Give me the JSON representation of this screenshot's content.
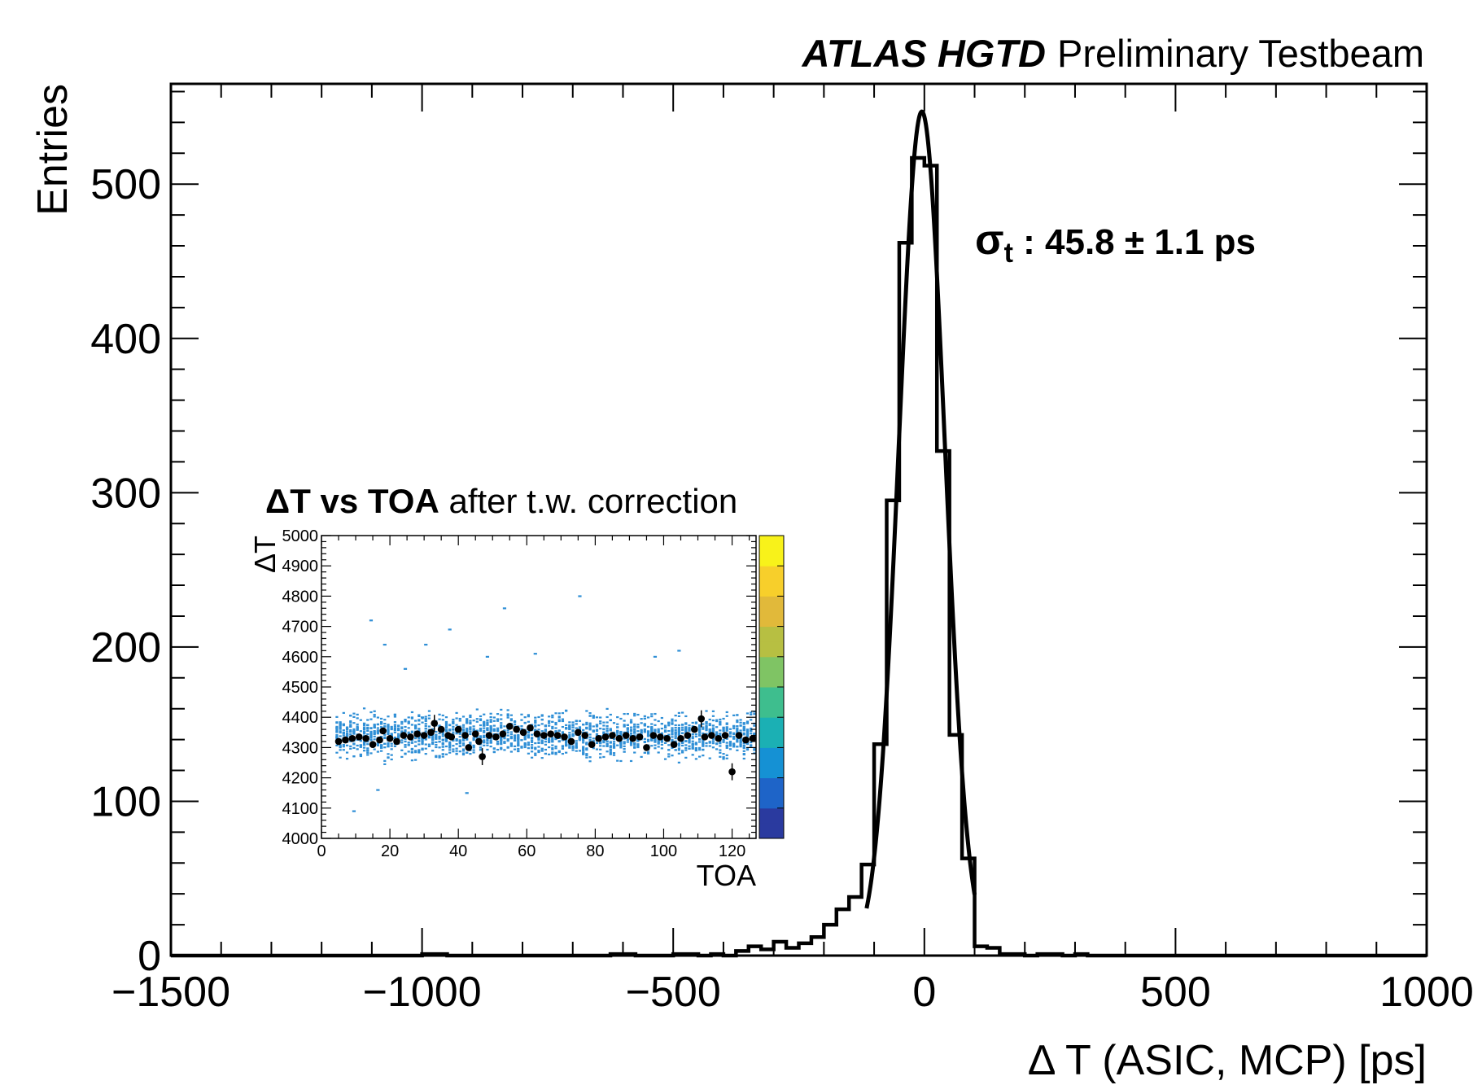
{
  "chart_data": [
    {
      "type": "histogram",
      "experiment_label": "ATLAS HGTD",
      "status_label": "Preliminary Testbeam",
      "xlabel": "Δ T (ASIC, MCP) [ps]",
      "ylabel": "Entries",
      "xlim": [
        -1500,
        1000
      ],
      "ylim": [
        0,
        565
      ],
      "x_ticks": [
        -1500,
        -1000,
        -500,
        0,
        500,
        1000
      ],
      "x_tick_labels": [
        "−1500",
        "−1000",
        "−500",
        "0",
        "500",
        "1000"
      ],
      "y_ticks": [
        0,
        100,
        200,
        300,
        400,
        500
      ],
      "y_tick_labels": [
        "0",
        "100",
        "200",
        "300",
        "400",
        "500"
      ],
      "bin_width": 25,
      "bins": [
        {
          "x": -1000,
          "y": 1
        },
        {
          "x": -975,
          "y": 1
        },
        {
          "x": -625,
          "y": 1
        },
        {
          "x": -600,
          "y": 1
        },
        {
          "x": -500,
          "y": 1
        },
        {
          "x": -475,
          "y": 1
        },
        {
          "x": -425,
          "y": 1
        },
        {
          "x": -375,
          "y": 3
        },
        {
          "x": -350,
          "y": 6
        },
        {
          "x": -325,
          "y": 4
        },
        {
          "x": -300,
          "y": 9
        },
        {
          "x": -275,
          "y": 5
        },
        {
          "x": -250,
          "y": 8
        },
        {
          "x": -225,
          "y": 12
        },
        {
          "x": -200,
          "y": 20
        },
        {
          "x": -175,
          "y": 30
        },
        {
          "x": -150,
          "y": 38
        },
        {
          "x": -125,
          "y": 59
        },
        {
          "x": -100,
          "y": 137
        },
        {
          "x": -75,
          "y": 295
        },
        {
          "x": -50,
          "y": 462
        },
        {
          "x": -25,
          "y": 517
        },
        {
          "x": 0,
          "y": 512
        },
        {
          "x": 25,
          "y": 327
        },
        {
          "x": 50,
          "y": 143
        },
        {
          "x": 75,
          "y": 63
        },
        {
          "x": 100,
          "y": 6
        },
        {
          "x": 125,
          "y": 5
        },
        {
          "x": 150,
          "y": 1
        },
        {
          "x": 175,
          "y": 1
        },
        {
          "x": 225,
          "y": 1
        },
        {
          "x": 250,
          "y": 1
        },
        {
          "x": 300,
          "y": 1
        }
      ],
      "fit": {
        "type": "gaussian",
        "amplitude": 547,
        "mean": -5,
        "sigma": 45.8,
        "range": [
          -115,
          100
        ]
      },
      "annotation": {
        "symbol": "σ",
        "subscript": "t",
        "text": " :  45.8 ± 1.1 ps"
      }
    },
    {
      "type": "heatmap",
      "title_bold": "ΔT vs TOA",
      "title_rest": " after t.w. correction",
      "xlabel": "TOA",
      "ylabel": "ΔT",
      "xlim": [
        0,
        127
      ],
      "ylim": [
        4000,
        5000
      ],
      "x_ticks": [
        0,
        20,
        40,
        60,
        80,
        100,
        120
      ],
      "y_ticks": [
        4000,
        4100,
        4200,
        4300,
        4400,
        4500,
        4600,
        4700,
        4800,
        4900,
        5000
      ],
      "profile_points": [
        {
          "x": 5,
          "y": 4320
        },
        {
          "x": 7,
          "y": 4325
        },
        {
          "x": 9,
          "y": 4330
        },
        {
          "x": 11,
          "y": 4335
        },
        {
          "x": 13,
          "y": 4330
        },
        {
          "x": 15,
          "y": 4310
        },
        {
          "x": 17,
          "y": 4325
        },
        {
          "x": 18,
          "y": 4355
        },
        {
          "x": 20,
          "y": 4330
        },
        {
          "x": 22,
          "y": 4320
        },
        {
          "x": 24,
          "y": 4340
        },
        {
          "x": 26,
          "y": 4335
        },
        {
          "x": 28,
          "y": 4345
        },
        {
          "x": 30,
          "y": 4340
        },
        {
          "x": 32,
          "y": 4350
        },
        {
          "x": 33,
          "y": 4380
        },
        {
          "x": 35,
          "y": 4360
        },
        {
          "x": 37,
          "y": 4340
        },
        {
          "x": 38,
          "y": 4335
        },
        {
          "x": 40,
          "y": 4360
        },
        {
          "x": 42,
          "y": 4340
        },
        {
          "x": 43,
          "y": 4300
        },
        {
          "x": 45,
          "y": 4345
        },
        {
          "x": 46,
          "y": 4320
        },
        {
          "x": 47,
          "y": 4270
        },
        {
          "x": 49,
          "y": 4340
        },
        {
          "x": 51,
          "y": 4335
        },
        {
          "x": 53,
          "y": 4345
        },
        {
          "x": 55,
          "y": 4370
        },
        {
          "x": 57,
          "y": 4360
        },
        {
          "x": 59,
          "y": 4350
        },
        {
          "x": 61,
          "y": 4365
        },
        {
          "x": 63,
          "y": 4345
        },
        {
          "x": 65,
          "y": 4340
        },
        {
          "x": 67,
          "y": 4345
        },
        {
          "x": 69,
          "y": 4340
        },
        {
          "x": 71,
          "y": 4335
        },
        {
          "x": 73,
          "y": 4320
        },
        {
          "x": 75,
          "y": 4350
        },
        {
          "x": 77,
          "y": 4340
        },
        {
          "x": 79,
          "y": 4310
        },
        {
          "x": 81,
          "y": 4330
        },
        {
          "x": 83,
          "y": 4335
        },
        {
          "x": 85,
          "y": 4340
        },
        {
          "x": 87,
          "y": 4330
        },
        {
          "x": 89,
          "y": 4340
        },
        {
          "x": 91,
          "y": 4330
        },
        {
          "x": 93,
          "y": 4335
        },
        {
          "x": 95,
          "y": 4300
        },
        {
          "x": 97,
          "y": 4340
        },
        {
          "x": 99,
          "y": 4335
        },
        {
          "x": 101,
          "y": 4330
        },
        {
          "x": 103,
          "y": 4310
        },
        {
          "x": 105,
          "y": 4330
        },
        {
          "x": 107,
          "y": 4340
        },
        {
          "x": 109,
          "y": 4360
        },
        {
          "x": 111,
          "y": 4395
        },
        {
          "x": 112,
          "y": 4335
        },
        {
          "x": 114,
          "y": 4340
        },
        {
          "x": 116,
          "y": 4330
        },
        {
          "x": 118,
          "y": 4340
        },
        {
          "x": 120,
          "y": 4220
        },
        {
          "x": 122,
          "y": 4340
        },
        {
          "x": 124,
          "y": 4325
        },
        {
          "x": 126,
          "y": 4330
        }
      ],
      "scatter_band": [
        4240,
        4440
      ],
      "outliers": [
        {
          "x": 14,
          "y": 4720
        },
        {
          "x": 18,
          "y": 4640
        },
        {
          "x": 29,
          "y": 4400
        },
        {
          "x": 37,
          "y": 4690
        },
        {
          "x": 42,
          "y": 4150
        },
        {
          "x": 53,
          "y": 4760
        },
        {
          "x": 75,
          "y": 4800
        },
        {
          "x": 16,
          "y": 4160
        },
        {
          "x": 24,
          "y": 4560
        },
        {
          "x": 48,
          "y": 4600
        },
        {
          "x": 62,
          "y": 4610
        },
        {
          "x": 97,
          "y": 4600
        },
        {
          "x": 104,
          "y": 4620
        },
        {
          "x": 9,
          "y": 4090
        },
        {
          "x": 30,
          "y": 4640
        }
      ],
      "colorscale": [
        "#2a3a9f",
        "#1e64c8",
        "#1591d4",
        "#1bb0b4",
        "#3ebe8e",
        "#7fc464",
        "#b7bf42",
        "#e1b93a",
        "#f7cf2b",
        "#f8f21a"
      ],
      "cell_color": "#2f8fd6"
    }
  ]
}
